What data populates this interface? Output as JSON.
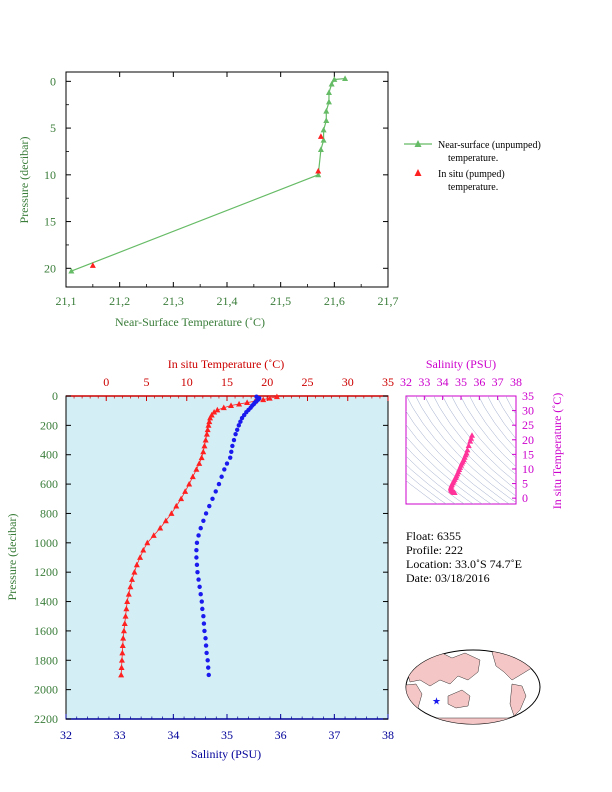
{
  "colors": {
    "green": "#3a7d3a",
    "green_line": "#66bb66",
    "red": "#cc0000",
    "red_mark": "#ff2020",
    "blue": "#000099",
    "blue_mark": "#1a1aee",
    "magenta": "#cc00cc",
    "magenta_mark": "#ff3399",
    "panel_fill": "#d4eef6",
    "map_land": "#f5c6c6",
    "map_ocean": "#ffffff"
  },
  "chart_data": [
    {
      "type": "line",
      "xlabel": "Near-Surface Temperature (˚C)",
      "ylabel": "Pressure (decibar)",
      "xlim": [
        21.1,
        21.7
      ],
      "ylim": [
        22,
        -1
      ],
      "x_ticks": [
        "21,1",
        "21,2",
        "21,3",
        "21,4",
        "21,5",
        "21,6",
        "21,7"
      ],
      "y_ticks": [
        "0",
        "5",
        "10",
        "15",
        "20"
      ],
      "series": [
        {
          "name": "Near-surface (unpumped) temperature.",
          "x": [
            21.62,
            21.6,
            21.595,
            21.59,
            21.59,
            21.585,
            21.585,
            21.58,
            21.58,
            21.575,
            21.57,
            21.11
          ],
          "y": [
            -0.3,
            -0.2,
            0.3,
            1.2,
            2.2,
            3.2,
            4.2,
            5.2,
            6.3,
            7.3,
            10.0,
            20.3
          ]
        },
        {
          "name": "In situ (pumped) temperature.",
          "x": [
            21.575,
            21.57,
            21.15
          ],
          "y": [
            5.9,
            9.6,
            19.7
          ]
        }
      ],
      "legend": [
        "Near-surface (unpumped)",
        "temperature.",
        "In situ (pumped)",
        "temperature."
      ]
    },
    {
      "type": "scatter",
      "ylabel": "Pressure (decibar)",
      "x_top_label": "In situ Temperature (˚C)",
      "x_bottom_label": "Salinity (PSU)",
      "temp_lim": [
        -5,
        35
      ],
      "sal_lim": [
        32,
        38
      ],
      "ylim": [
        2200,
        0
      ],
      "temp_ticks": [
        "0",
        "5",
        "10",
        "15",
        "20",
        "25",
        "30",
        "35"
      ],
      "sal_ticks": [
        "32",
        "33",
        "34",
        "35",
        "36",
        "37",
        "38"
      ],
      "p_ticks": [
        "0",
        "200",
        "400",
        "600",
        "800",
        "1000",
        "1200",
        "1400",
        "1600",
        "1800",
        "2000",
        "2200"
      ],
      "temperature": {
        "pressure": [
          5,
          15,
          25,
          35,
          45,
          55,
          65,
          80,
          95,
          110,
          130,
          150,
          175,
          200,
          230,
          260,
          300,
          340,
          380,
          420,
          460,
          500,
          550,
          600,
          650,
          700,
          750,
          800,
          850,
          900,
          950,
          1000,
          1050,
          1100,
          1150,
          1200,
          1250,
          1300,
          1350,
          1400,
          1450,
          1500,
          1550,
          1600,
          1650,
          1700,
          1750,
          1800,
          1850,
          1900
        ],
        "values": [
          21.2,
          20.3,
          19.5,
          18.5,
          17.5,
          16.5,
          15.5,
          14.6,
          13.8,
          13.4,
          13.1,
          12.9,
          12.8,
          12.7,
          12.6,
          12.5,
          12.35,
          12.2,
          12.05,
          11.85,
          11.55,
          11.2,
          10.75,
          10.3,
          9.8,
          9.3,
          8.7,
          8.1,
          7.4,
          6.7,
          5.9,
          5.1,
          4.6,
          4.2,
          3.8,
          3.5,
          3.2,
          3.0,
          2.8,
          2.6,
          2.5,
          2.4,
          2.3,
          2.2,
          2.1,
          2.05,
          2.0,
          1.95,
          1.9,
          1.85
        ]
      },
      "salinity": {
        "pressure": [
          5,
          15,
          25,
          35,
          45,
          55,
          65,
          80,
          95,
          110,
          130,
          150,
          175,
          200,
          230,
          260,
          300,
          340,
          380,
          420,
          460,
          500,
          550,
          600,
          650,
          700,
          750,
          800,
          850,
          900,
          950,
          1000,
          1050,
          1100,
          1150,
          1200,
          1250,
          1300,
          1350,
          1400,
          1450,
          1500,
          1550,
          1600,
          1650,
          1700,
          1750,
          1800,
          1850,
          1900
        ],
        "values": [
          35.55,
          35.6,
          35.58,
          35.55,
          35.52,
          35.5,
          35.47,
          35.44,
          35.4,
          35.36,
          35.32,
          35.28,
          35.25,
          35.22,
          35.19,
          35.16,
          35.13,
          35.1,
          35.08,
          35.06,
          35.0,
          34.95,
          34.9,
          34.85,
          34.79,
          34.73,
          34.67,
          34.61,
          34.56,
          34.51,
          34.47,
          34.44,
          34.43,
          34.43,
          34.44,
          34.45,
          34.47,
          34.49,
          34.51,
          34.53,
          34.54,
          34.56,
          34.57,
          34.58,
          34.6,
          34.61,
          34.62,
          34.64,
          34.65,
          34.66
        ]
      }
    },
    {
      "type": "scatter",
      "xlabel": "Salinity (PSU)",
      "ylabel": "In situ Temperature (˚C)",
      "xlim": [
        32,
        38
      ],
      "ylim": [
        -2,
        35
      ],
      "x_ticks": [
        "32",
        "33",
        "34",
        "35",
        "36",
        "37",
        "38"
      ],
      "y_ticks": [
        "0",
        "5",
        "10",
        "15",
        "20",
        "25",
        "30",
        "35"
      ],
      "salinity": [
        35.6,
        35.55,
        35.5,
        35.42,
        35.35,
        35.3,
        35.25,
        35.2,
        35.15,
        35.1,
        35.05,
        35.0,
        34.95,
        34.9,
        34.85,
        34.8,
        34.75,
        34.7,
        34.65,
        34.6,
        34.55,
        34.5,
        34.47,
        34.45,
        34.45,
        34.47,
        34.5,
        34.55,
        34.6,
        34.65
      ],
      "temperature": [
        21.5,
        20.5,
        19.5,
        18.0,
        16.5,
        15.5,
        14.8,
        14.0,
        13.2,
        12.6,
        12.0,
        11.3,
        10.5,
        9.8,
        9.0,
        8.3,
        7.6,
        7.0,
        6.4,
        5.8,
        5.2,
        4.6,
        4.1,
        3.6,
        3.2,
        2.8,
        2.5,
        2.2,
        2.0,
        1.9
      ]
    }
  ],
  "info": {
    "float": "Float:  6355",
    "profile": "Profile:  222",
    "location": "Location:  33.0˚S  74.7˚E",
    "date": "Date:  03/18/2016"
  },
  "map": {
    "marker_lon": 74.7,
    "marker_lat": -33.0
  }
}
